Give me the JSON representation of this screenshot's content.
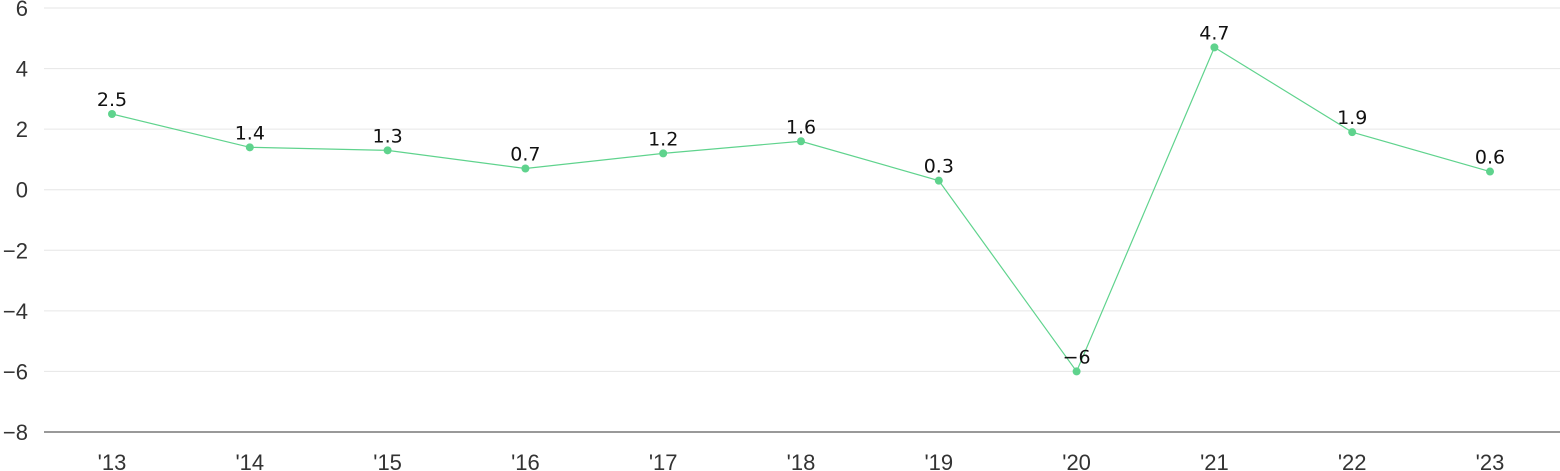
{
  "chart_data": {
    "type": "line",
    "title": "",
    "xlabel": "",
    "ylabel": "",
    "categories": [
      "'13",
      "'14",
      "'15",
      "'16",
      "'17",
      "'18",
      "'19",
      "'20",
      "'21",
      "'22",
      "'23"
    ],
    "series": [
      {
        "values": [
          2.5,
          1.4,
          1.3,
          0.7,
          1.2,
          1.6,
          0.3,
          -6,
          4.7,
          1.9,
          0.6
        ],
        "data_labels": [
          "2.5",
          "1.4",
          "1.3",
          "0.7",
          "1.2",
          "1.6",
          "0.3",
          "−6",
          "4.7",
          "1.9",
          "0.6"
        ],
        "color": "#5fd38d"
      }
    ],
    "ylim": [
      -8,
      6
    ],
    "yticks": [
      6,
      4,
      2,
      0,
      -2,
      -4,
      -6,
      -8
    ],
    "ytick_labels": [
      "6",
      "4",
      "2",
      "0",
      "−2",
      "−4",
      "−6",
      "−8"
    ],
    "grid": true,
    "legend": "none"
  }
}
